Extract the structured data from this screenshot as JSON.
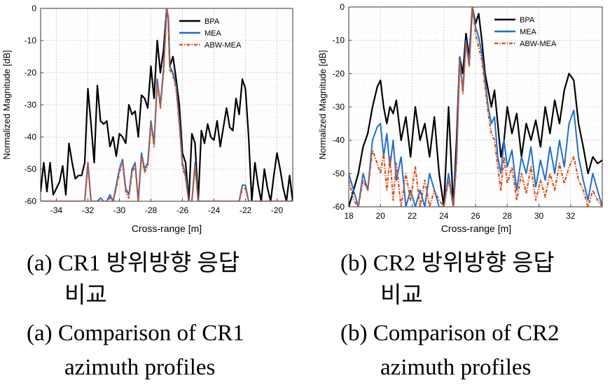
{
  "charts": {
    "a": {
      "ylabel": "Normalized Magnitude [dB]",
      "xlabel": "Cross-range [m]",
      "ytick_labels": [
        "0",
        "-10",
        "-20",
        "-30",
        "-40",
        "-50",
        "-60"
      ],
      "xtick_labels": [
        "-34",
        "-32",
        "-30",
        "-28",
        "-26",
        "-24",
        "-22",
        "-20"
      ],
      "legend": [
        "BPA",
        "MEA",
        "ABW-MEA"
      ]
    },
    "b": {
      "ylabel": "Normalized Magnitude [dB]",
      "xlabel": "Cross-range [m]",
      "ytick_labels": [
        "0",
        "-10",
        "-20",
        "-30",
        "-40",
        "-50",
        "-60"
      ],
      "xtick_labels": [
        "18",
        "20",
        "22",
        "24",
        "26",
        "28",
        "30",
        "32"
      ],
      "legend": [
        "BPA",
        "MEA",
        "ABW-MEA"
      ]
    }
  },
  "chart_data": [
    {
      "type": "line",
      "xlabel": "Cross-range [m]",
      "ylabel": "Normalized Magnitude [dB]",
      "xlim": [
        -35,
        -19
      ],
      "ylim": [
        -60,
        0
      ],
      "grid": true,
      "legend_position": "top-right",
      "series": [
        {
          "name": "BPA",
          "color": "#000000",
          "dash": "solid",
          "x": [
            -35,
            -34.8,
            -34.6,
            -34.4,
            -34.2,
            -34,
            -33.8,
            -33.6,
            -33.4,
            -33.2,
            -33,
            -32.8,
            -32.6,
            -32.4,
            -32.2,
            -32,
            -31.8,
            -31.6,
            -31.4,
            -31.2,
            -31,
            -30.8,
            -30.6,
            -30.4,
            -30.2,
            -30,
            -29.8,
            -29.6,
            -29.4,
            -29.2,
            -29,
            -28.8,
            -28.6,
            -28.4,
            -28.2,
            -28,
            -27.8,
            -27.6,
            -27.4,
            -27.2,
            -27,
            -26.9,
            -26.8,
            -26.6,
            -26.4,
            -26.2,
            -26,
            -25.8,
            -25.6,
            -25.4,
            -25.2,
            -25,
            -24.8,
            -24.6,
            -24.4,
            -24.2,
            -24,
            -23.8,
            -23.6,
            -23.4,
            -23.2,
            -23,
            -22.8,
            -22.6,
            -22.4,
            -22.2,
            -22,
            -21.8,
            -21.6,
            -21.4,
            -21.2,
            -21,
            -20.8,
            -20.6,
            -20.4,
            -20.2,
            -20,
            -19.8,
            -19.6,
            -19.4,
            -19.2,
            -19
          ],
          "y": [
            -57,
            -48,
            -57,
            -48,
            -58,
            -56,
            -54,
            -49,
            -58,
            -42,
            -48,
            -53,
            -52,
            -52,
            -48,
            -25,
            -36,
            -48,
            -24,
            -35,
            -36,
            -35,
            -43,
            -40,
            -46,
            -39,
            -40,
            -42,
            -30,
            -33,
            -32,
            -40,
            -27,
            -28,
            -31,
            -18,
            -28,
            -10,
            -20,
            -13,
            0,
            -3,
            -18,
            -15,
            -22,
            -30,
            -45,
            -48,
            -60,
            -39,
            -42,
            -60,
            -38,
            -42,
            -36,
            -40,
            -41,
            -35,
            -43,
            -37,
            -31,
            -37,
            -38,
            -28,
            -33,
            -22,
            -25,
            -40,
            -60,
            -48,
            -55,
            -60,
            -50,
            -56,
            -60,
            -52,
            -45,
            -50,
            -56,
            -60,
            -52,
            -60
          ]
        },
        {
          "name": "MEA",
          "color": "#1f6fcf",
          "dash": "solid",
          "x": [
            -35,
            -34.6,
            -34.2,
            -33.8,
            -33.4,
            -33,
            -32.6,
            -32.2,
            -32,
            -31.8,
            -31.6,
            -31.4,
            -31.2,
            -31,
            -30.8,
            -30.6,
            -30.4,
            -30.2,
            -30,
            -29.8,
            -29.6,
            -29.4,
            -29.2,
            -29,
            -28.8,
            -28.6,
            -28.4,
            -28.2,
            -28,
            -27.8,
            -27.6,
            -27.4,
            -27.2,
            -27,
            -26.9,
            -26.8,
            -26.6,
            -26.4,
            -26.2,
            -26,
            -25.8,
            -25.6,
            -25.4,
            -25.2,
            -25,
            -24.8,
            -24.6,
            -24.4,
            -24.2,
            -24,
            -23.8,
            -23.6,
            -23.4,
            -23.2,
            -23,
            -22.8,
            -22.6,
            -22.4,
            -22.2,
            -22,
            -21.8,
            -21.6,
            -21.4,
            -21.2,
            -21,
            -20.5,
            -20,
            -19.5,
            -19
          ],
          "y": [
            -60,
            -60,
            -60,
            -60,
            -60,
            -60,
            -60,
            -60,
            -48,
            -60,
            -60,
            -60,
            -59,
            -60,
            -60,
            -58,
            -60,
            -55,
            -50,
            -47,
            -56,
            -58,
            -50,
            -48,
            -60,
            -45,
            -50,
            -48,
            -35,
            -42,
            -22,
            -30,
            -19,
            0,
            -3,
            -18,
            -20,
            -24,
            -35,
            -48,
            -52,
            -60,
            -60,
            -48,
            -60,
            -60,
            -60,
            -60,
            -60,
            -60,
            -60,
            -60,
            -60,
            -60,
            -60,
            -60,
            -60,
            -60,
            -55,
            -55,
            -60,
            -60,
            -60,
            -60,
            -60,
            -60,
            -60,
            -60,
            -60
          ]
        },
        {
          "name": "ABW-MEA",
          "color": "#d9541e",
          "dash": "dashdot",
          "x": [
            -35,
            -34.6,
            -34.2,
            -33.8,
            -33.4,
            -33,
            -32.6,
            -32.2,
            -32,
            -31.8,
            -31.6,
            -31.4,
            -31.2,
            -31,
            -30.8,
            -30.6,
            -30.4,
            -30.2,
            -30,
            -29.8,
            -29.6,
            -29.4,
            -29.2,
            -29,
            -28.8,
            -28.6,
            -28.4,
            -28.2,
            -28,
            -27.8,
            -27.6,
            -27.4,
            -27.2,
            -27,
            -26.9,
            -26.8,
            -26.6,
            -26.4,
            -26.2,
            -26,
            -25.8,
            -25.6,
            -25.4,
            -25.2,
            -25,
            -24.8,
            -24.6,
            -24.4,
            -24.2,
            -24,
            -23.8,
            -23.6,
            -23.4,
            -23.2,
            -23,
            -22.8,
            -22.6,
            -22.4,
            -22.2,
            -22,
            -21.8,
            -21.6,
            -21.4,
            -21.2,
            -21,
            -20.5,
            -20,
            -19.5,
            -19
          ],
          "y": [
            -60,
            -60,
            -60,
            -60,
            -60,
            -60,
            -60,
            -60,
            -48,
            -60,
            -60,
            -60,
            -60,
            -60,
            -60,
            -59,
            -60,
            -56,
            -51,
            -48,
            -57,
            -59,
            -51,
            -49,
            -60,
            -46,
            -51,
            -49,
            -36,
            -43,
            -23,
            -31,
            -20,
            0,
            -3,
            -19,
            -21,
            -25,
            -36,
            -49,
            -53,
            -60,
            -60,
            -49,
            -60,
            -60,
            -60,
            -60,
            -60,
            -60,
            -60,
            -60,
            -60,
            -60,
            -60,
            -60,
            -60,
            -60,
            -56,
            -56,
            -60,
            -60,
            -60,
            -60,
            -60,
            -60,
            -60,
            -60,
            -60
          ]
        }
      ]
    },
    {
      "type": "line",
      "xlabel": "Cross-range [m]",
      "ylabel": "Normalized Magnitude [dB]",
      "xlim": [
        18,
        34
      ],
      "ylim": [
        -60,
        0
      ],
      "grid": true,
      "legend_position": "top-right",
      "series": [
        {
          "name": "BPA",
          "color": "#000000",
          "dash": "solid",
          "x": [
            18,
            18.3,
            18.6,
            18.9,
            19.2,
            19.5,
            19.8,
            20,
            20.2,
            20.4,
            20.6,
            20.8,
            21,
            21.3,
            21.6,
            21.9,
            22.2,
            22.5,
            22.8,
            23.1,
            23.4,
            23.7,
            24,
            24.3,
            24.6,
            24.8,
            25,
            25.2,
            25.4,
            25.6,
            25.8,
            26,
            26.2,
            26.4,
            26.6,
            26.8,
            27,
            27.2,
            27.4,
            27.6,
            27.8,
            28,
            28.3,
            28.6,
            28.9,
            29.2,
            29.5,
            29.8,
            30.1,
            30.4,
            30.7,
            31,
            31.3,
            31.6,
            31.9,
            32.2,
            32.5,
            32.8,
            33.1,
            33.4,
            33.7,
            34
          ],
          "y": [
            -60,
            -55,
            -50,
            -42,
            -38,
            -30,
            -24,
            -22,
            -30,
            -35,
            -30,
            -32,
            -28,
            -40,
            -33,
            -45,
            -30,
            -40,
            -35,
            -45,
            -33,
            -50,
            -60,
            -30,
            -60,
            -40,
            -15,
            -20,
            -8,
            -15,
            0,
            -5,
            -2,
            -10,
            -20,
            -25,
            -30,
            -25,
            -35,
            -45,
            -40,
            -30,
            -38,
            -32,
            -45,
            -35,
            -40,
            -34,
            -42,
            -30,
            -38,
            -28,
            -35,
            -25,
            -20,
            -22,
            -35,
            -42,
            -50,
            -45,
            -47,
            -46
          ]
        },
        {
          "name": "MEA",
          "color": "#1f6fcf",
          "dash": "solid",
          "x": [
            18,
            18.3,
            18.6,
            18.9,
            19.2,
            19.5,
            19.8,
            20,
            20.2,
            20.4,
            20.6,
            20.8,
            21,
            21.3,
            21.6,
            21.9,
            22.2,
            22.5,
            22.8,
            23.1,
            23.4,
            23.7,
            24,
            24.3,
            24.6,
            24.8,
            25,
            25.2,
            25.4,
            25.6,
            25.8,
            26,
            26.2,
            26.4,
            26.6,
            26.8,
            27,
            27.2,
            27.4,
            27.6,
            27.8,
            28,
            28.3,
            28.6,
            28.9,
            29.2,
            29.5,
            29.8,
            30.1,
            30.4,
            30.7,
            31,
            31.3,
            31.6,
            31.9,
            32.2,
            32.5,
            32.8,
            33.1,
            33.4,
            33.7,
            34
          ],
          "y": [
            -50,
            -55,
            -60,
            -50,
            -55,
            -40,
            -36,
            -35,
            -45,
            -38,
            -48,
            -40,
            -52,
            -45,
            -60,
            -55,
            -60,
            -55,
            -60,
            -50,
            -55,
            -60,
            -60,
            -50,
            -60,
            -45,
            -15,
            -25,
            -10,
            -17,
            0,
            -6,
            -9,
            -14,
            -22,
            -30,
            -35,
            -33,
            -45,
            -50,
            -40,
            -48,
            -43,
            -55,
            -45,
            -50,
            -42,
            -54,
            -46,
            -52,
            -42,
            -50,
            -40,
            -48,
            -35,
            -31,
            -45,
            -52,
            -58,
            -50,
            -55,
            -60
          ]
        },
        {
          "name": "ABW-MEA",
          "color": "#d9541e",
          "dash": "dashdot",
          "x": [
            18,
            18.3,
            18.6,
            18.9,
            19.2,
            19.5,
            19.8,
            20,
            20.2,
            20.4,
            20.6,
            20.8,
            21,
            21.3,
            21.6,
            21.9,
            22.2,
            22.5,
            22.8,
            23.1,
            23.4,
            23.7,
            24,
            24.3,
            24.6,
            24.8,
            25,
            25.2,
            25.4,
            25.6,
            25.8,
            26,
            26.2,
            26.4,
            26.6,
            26.8,
            27,
            27.2,
            27.4,
            27.6,
            27.8,
            28,
            28.3,
            28.6,
            28.9,
            29.2,
            29.5,
            29.8,
            30.1,
            30.4,
            30.7,
            31,
            31.3,
            31.6,
            31.9,
            32.2,
            32.5,
            32.8,
            33.1,
            33.4,
            33.7,
            34
          ],
          "y": [
            -52,
            -58,
            -60,
            -52,
            -55,
            -43,
            -47,
            -50,
            -44,
            -55,
            -45,
            -58,
            -47,
            -60,
            -50,
            -58,
            -48,
            -60,
            -52,
            -60,
            -55,
            -58,
            -60,
            -52,
            -60,
            -47,
            -16,
            -26,
            -11,
            -18,
            0,
            -8,
            -12,
            -16,
            -24,
            -32,
            -38,
            -40,
            -48,
            -55,
            -45,
            -53,
            -48,
            -58,
            -50,
            -56,
            -48,
            -58,
            -52,
            -57,
            -50,
            -55,
            -47,
            -53,
            -48,
            -45,
            -52,
            -55,
            -60,
            -55,
            -58,
            -60
          ]
        }
      ]
    }
  ],
  "captions": {
    "a_kr_tag": "(a)",
    "a_kr_line1": "CR1 방위방향 응답",
    "a_kr_line2": "비교",
    "b_kr_tag": "(b)",
    "b_kr_line1": "CR2 방위방향 응답",
    "b_kr_line2": "비교",
    "a_en_tag": "(a)",
    "a_en_line1": "Comparison of CR1",
    "a_en_line2": "azimuth profiles",
    "b_en_tag": "(b)",
    "b_en_line1": "Comparison of CR2",
    "b_en_line2": "azimuth profiles"
  }
}
